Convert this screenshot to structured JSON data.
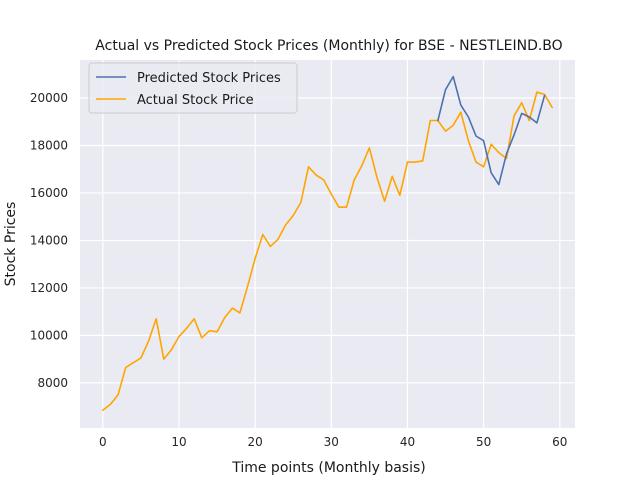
{
  "chart_data": {
    "type": "line",
    "title": "Actual vs Predicted Stock Prices (Monthly) for BSE - NESTLEIND.BO",
    "xlabel": "Time points (Monthly basis)",
    "ylabel": "Stock Prices",
    "xlim": [
      -3,
      62
    ],
    "ylim": [
      6100,
      21600
    ],
    "xticks": [
      0,
      10,
      20,
      30,
      40,
      50,
      60
    ],
    "yticks": [
      8000,
      10000,
      12000,
      14000,
      16000,
      18000,
      20000
    ],
    "grid": true,
    "legend_position": "top-left",
    "series": [
      {
        "name": "Predicted Stock Prices",
        "color": "#4c72b0",
        "x": [
          44,
          45,
          46,
          47,
          48,
          49,
          50,
          51,
          52,
          53,
          54,
          55,
          56,
          57,
          58
        ],
        "y": [
          19050,
          20350,
          20900,
          19700,
          19200,
          18400,
          18200,
          16850,
          16350,
          17650,
          18450,
          19350,
          19200,
          18950,
          20100
        ]
      },
      {
        "name": "Actual Stock Price",
        "color": "#ffa500",
        "x": [
          0,
          1,
          2,
          3,
          4,
          5,
          6,
          7,
          8,
          9,
          10,
          11,
          12,
          13,
          14,
          15,
          16,
          17,
          18,
          19,
          20,
          21,
          22,
          23,
          24,
          25,
          26,
          27,
          28,
          29,
          30,
          31,
          32,
          33,
          34,
          35,
          36,
          37,
          38,
          39,
          40,
          41,
          42,
          43,
          44,
          45,
          46,
          47,
          48,
          49,
          50,
          51,
          52,
          53,
          54,
          55,
          56,
          57,
          58,
          59
        ],
        "y": [
          6850,
          7100,
          7500,
          8650,
          8850,
          9050,
          9750,
          10700,
          9000,
          9400,
          9950,
          10300,
          10700,
          9900,
          10200,
          10150,
          10750,
          11150,
          10950,
          12050,
          13250,
          14250,
          13750,
          14050,
          14650,
          15050,
          15600,
          17100,
          16750,
          16550,
          15950,
          15400,
          15400,
          16550,
          17150,
          17900,
          16650,
          15650,
          16700,
          15900,
          17300,
          17300,
          17350,
          19050,
          19050,
          18600,
          18850,
          19400,
          18200,
          17300,
          17100,
          18050,
          17700,
          17450,
          19250,
          19800,
          19050,
          20250,
          20150,
          19600
        ]
      }
    ]
  }
}
